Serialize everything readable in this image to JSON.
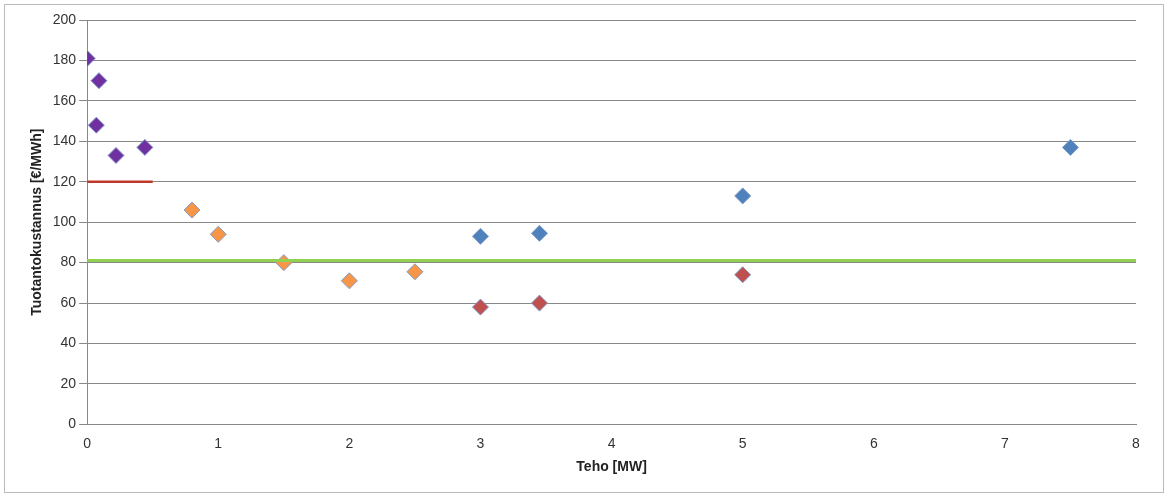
{
  "chart_data": {
    "type": "scatter",
    "xlabel": "Teho [MW]",
    "ylabel": "Tuotantokustannus [€/MWh]",
    "xlim": [
      0,
      8
    ],
    "xticks": [
      0,
      1,
      2,
      3,
      4,
      5,
      6,
      7,
      8
    ],
    "ylim": [
      0,
      200
    ],
    "yticks": [
      0,
      20,
      40,
      60,
      80,
      100,
      120,
      140,
      160,
      180,
      200
    ],
    "grid": "y",
    "legend": false,
    "marker": "diamond",
    "series": [
      {
        "color": "#7030a0",
        "x": [
          0,
          0.09,
          0.07,
          0.22,
          0.44
        ],
        "values": [
          181,
          170,
          148,
          133,
          137
        ]
      },
      {
        "color": "#f79646",
        "x": [
          0.8,
          1,
          1.5,
          2,
          2.5
        ],
        "values": [
          106,
          94,
          80,
          71,
          75.5
        ]
      },
      {
        "color": "#4f81bd",
        "x": [
          3,
          3.45,
          5,
          7.5
        ],
        "values": [
          93,
          94.5,
          113,
          137
        ]
      },
      {
        "color": "#c0504d",
        "x": [
          3,
          3.45,
          5
        ],
        "values": [
          58,
          60,
          74
        ]
      },
      {
        "type": "line",
        "marker": "none",
        "color": "#c0392b",
        "x": [
          0,
          0.5
        ],
        "values": [
          120,
          120
        ]
      }
    ],
    "ref_lines": [
      {
        "axis": "y",
        "value": 81,
        "color": "#92d050"
      }
    ]
  }
}
